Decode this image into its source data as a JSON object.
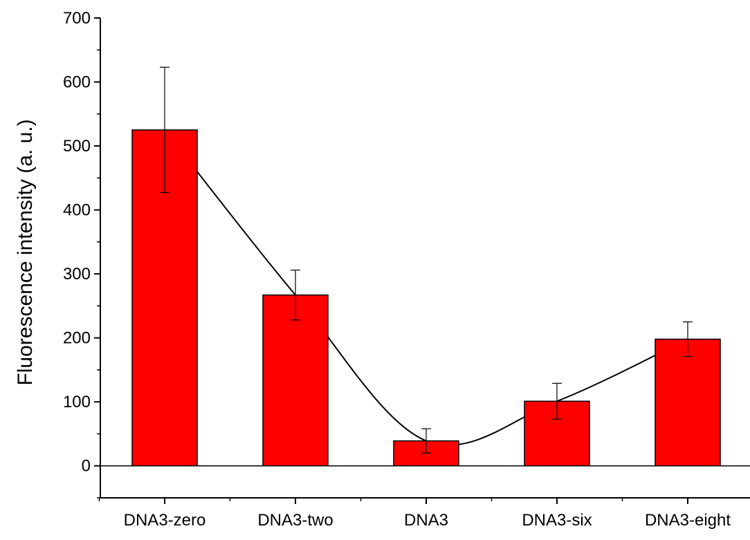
{
  "chart_data": {
    "type": "bar",
    "title": "",
    "xlabel": "",
    "ylabel": "Fluorescence intensity (a. u.)",
    "ylim": [
      -50,
      700
    ],
    "yticks": [
      0,
      100,
      200,
      300,
      400,
      500,
      600,
      700
    ],
    "y_minor_step": 50,
    "categories": [
      "DNA3-zero",
      "DNA3-two",
      "DNA3",
      "DNA3-six",
      "DNA3-eight"
    ],
    "series": [
      {
        "values": [
          525,
          267,
          39,
          101,
          198
        ],
        "errors": [
          98,
          39,
          19,
          28,
          27
        ],
        "color": "#ff0000"
      }
    ],
    "trend_line": true,
    "zero_line": true,
    "grid": false,
    "legend": "none",
    "colors": {
      "bar_fill": "#ff0000",
      "bar_stroke": "#000000",
      "axis": "#000000",
      "background": "#ffffff"
    }
  }
}
